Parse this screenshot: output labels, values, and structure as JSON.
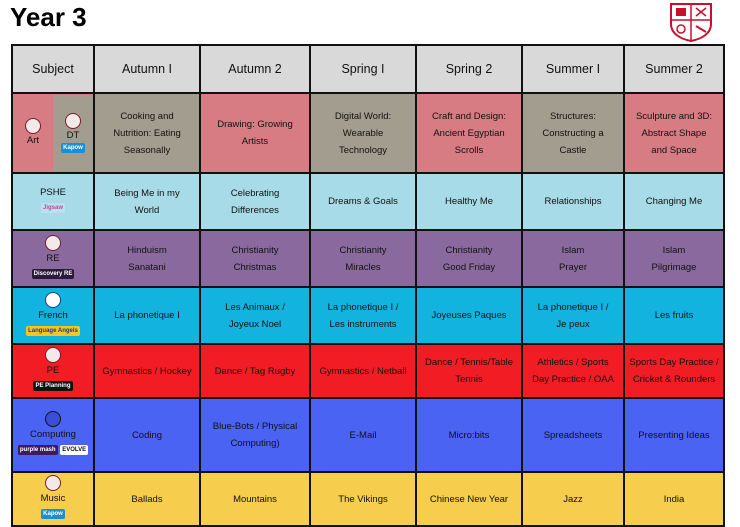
{
  "page": {
    "title": "Year 3"
  },
  "colors": {
    "art": "#d67c82",
    "dt": "#a39d8f",
    "pshe": "#a8dbe8",
    "re": "#8a6a9e",
    "french": "#12b3de",
    "pe": "#f21d24",
    "computing": "#4a63f2",
    "music": "#f6cd4c",
    "header": "#d9d9d9"
  },
  "headers": [
    "Subject",
    "Autumn I",
    "Autumn 2",
    "Spring I",
    "Spring 2",
    "Summer I",
    "Summer 2"
  ],
  "art_dt": {
    "art_label": "Art",
    "dt_label": "DT",
    "logo": "Kapow",
    "cells": [
      "Cooking and\nNutrition: Eating\nSeasonally",
      "Drawing: Growing\nArtists",
      "Digital World:\nWearable\nTechnology",
      "Craft and Design:\nAncient Egyptian\nScrolls",
      "Structures:\nConstructing a\nCastle",
      "Sculpture and 3D:\nAbstract Shape\nand Space"
    ]
  },
  "pshe": {
    "label": "PSHE",
    "logo": "Jigsaw",
    "cells": [
      "Being Me in my\nWorld",
      "Celebrating\nDifferences",
      "Dreams & Goals",
      "Healthy Me",
      "Relationships",
      "Changing Me"
    ]
  },
  "re": {
    "label": "RE",
    "logo": "Discovery RE",
    "cells": [
      "Hinduism\nSanatani",
      "Christianity\nChristmas",
      "Christianity\nMiracles",
      "Christianity\nGood Friday",
      "Islam\nPrayer",
      "Islam\nPilgrimage"
    ]
  },
  "french": {
    "label": "French",
    "logo": "Language Angels",
    "cells": [
      "La phonetique I",
      "Les Animaux /\nJoyeux Noel",
      "La phonetique I /\nLes instruments",
      "Joyeuses Paques",
      "La phonetique I /\nJe peux",
      "Les fruits"
    ]
  },
  "pe": {
    "label": "PE",
    "logo": "PE Planning",
    "cells": [
      "Gymnastics / Hockey",
      "Dance / Tag Rugby",
      "Gymnastics / Netball",
      "Dance / Tennis/Table\nTennis",
      "Athletics / Sports\nDay Practice / OAA",
      "Sports Day Practice /\nCricket & Rounders"
    ]
  },
  "computing": {
    "label": "Computing",
    "logo_purple": "purple mash",
    "logo_evolve": "EVOLVE",
    "cells": [
      "Coding",
      "Blue-Bots / Physical\nComputing)",
      "E-Mail",
      "Micro:bits",
      "Spreadsheets",
      "Presenting Ideas"
    ]
  },
  "music": {
    "label": "Music",
    "logo": "Kapow",
    "cells": [
      "Ballads",
      "Mountains",
      "The Vikings",
      "Chinese New Year",
      "Jazz",
      "India"
    ]
  }
}
